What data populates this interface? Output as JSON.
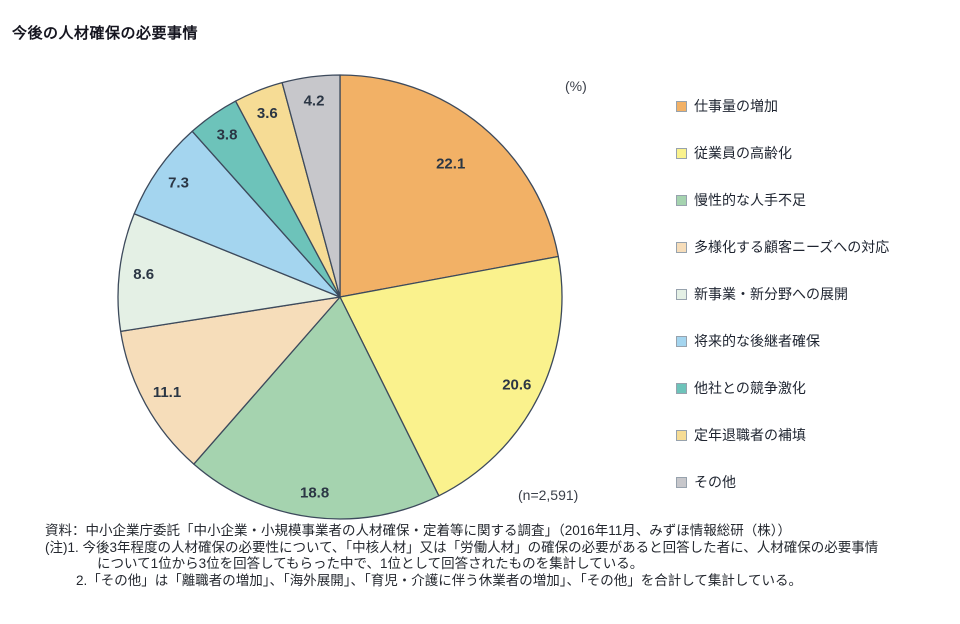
{
  "title": "今後の人材確保の必要事情",
  "unit_label": "(%)",
  "sample_label": "(n=2,591)",
  "chart_data": {
    "type": "pie",
    "title": "今後の人材確保の必要事情",
    "unit": "%",
    "n": "2,591",
    "start_angle": "12時方向",
    "direction": "clockwise",
    "legend_position": "right",
    "slices": [
      {
        "label": "仕事量の増加",
        "value": 22.1,
        "color": "#F2B166"
      },
      {
        "label": "従業員の高齢化",
        "value": 20.6,
        "color": "#FAF28D"
      },
      {
        "label": "慢性的な人手不足",
        "value": 18.8,
        "color": "#A5D3AF"
      },
      {
        "label": "多様化する顧客ニーズへの対応",
        "value": 11.1,
        "color": "#F6DDBA"
      },
      {
        "label": "新事業・新分野への展開",
        "value": 8.6,
        "color": "#E4F0E5"
      },
      {
        "label": "将来的な後継者確保",
        "value": 7.3,
        "color": "#A4D5EF"
      },
      {
        "label": "他社との競争激化",
        "value": 3.8,
        "color": "#6DC3BA"
      },
      {
        "label": "定年退職者の補填",
        "value": 3.6,
        "color": "#F6DC95"
      },
      {
        "label": "その他",
        "value": 4.2,
        "color": "#C7C7CB"
      }
    ],
    "outline_color": "#3d4a5c"
  },
  "footnotes": {
    "source": "資料：中小企業庁委託「中小企業・小規模事業者の人材確保・定着等に関する調査」（2016年11月、みずほ情報総研（株））",
    "note1_line1": "(注)1. 今後3年程度の人材確保の必要性について、「中核人材」又は「労働人材」の確保の必要があると回答した者に、人材確保の必要事情",
    "note1_line2": "について1位から3位を回答してもらった中で、1位として回答されたものを集計している。",
    "note2": "2.「その他」は「離職者の増加」、「海外展開」、「育児・介護に伴う休業者の増加」、「その他」を合計して集計している。"
  }
}
